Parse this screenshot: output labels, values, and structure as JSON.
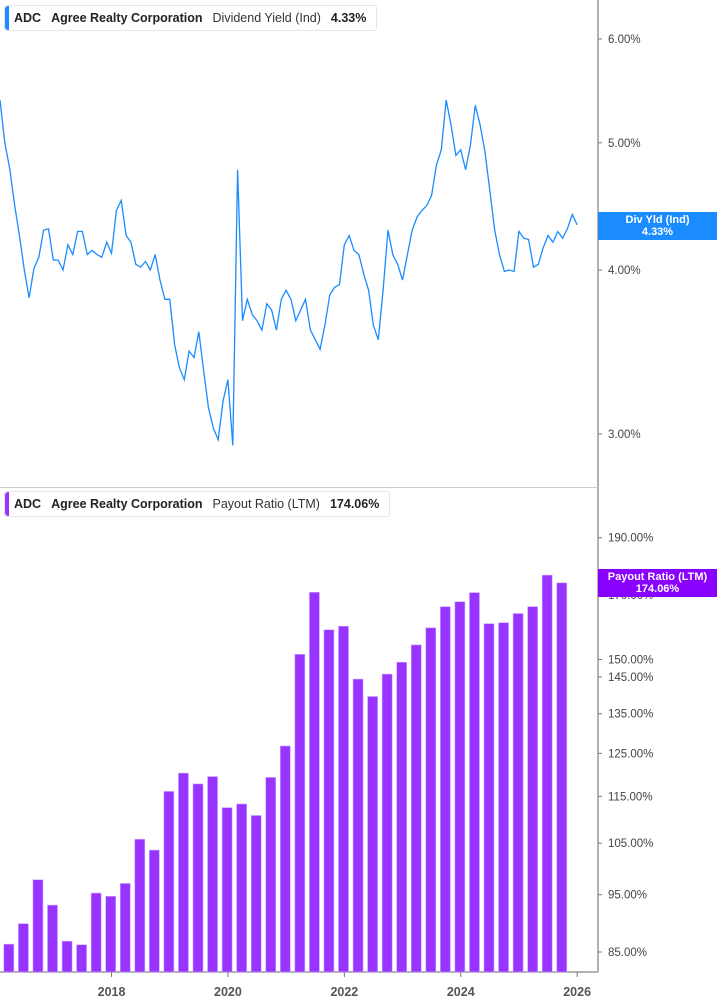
{
  "colors": {
    "yield": "#1a8cff",
    "payout": "#9933ff",
    "payout_badge": "#8a00ff",
    "axis": "#999999"
  },
  "top_legend": {
    "ticker": "ADC",
    "company": "Agree Realty Corporation",
    "metric": "Dividend Yield (Ind)",
    "value": "4.33%"
  },
  "bottom_legend": {
    "ticker": "ADC",
    "company": "Agree Realty Corporation",
    "metric": "Payout Ratio (LTM)",
    "value": "174.06%"
  },
  "top_badge": {
    "label": "Div Yld (Ind)",
    "value": "4.33%"
  },
  "bottom_badge": {
    "label": "Payout Ratio (LTM)",
    "value": "174.06%"
  },
  "chart_data": [
    {
      "type": "line",
      "scale": "log",
      "ylim": [
        2.73,
        6.42
      ],
      "grid": false,
      "yticks": [
        {
          "v": 6,
          "label": "6.00%"
        },
        {
          "v": 5,
          "label": "5.00%"
        },
        {
          "v": 4,
          "label": "4.00%"
        },
        {
          "v": 3,
          "label": "3.00%"
        }
      ],
      "start": "2016-02",
      "frequency": "monthly",
      "values": [
        5.39,
        5.0,
        4.78,
        4.49,
        4.25,
        4.0,
        3.81,
        4.01,
        4.09,
        4.29,
        4.3,
        4.07,
        4.07,
        4.0,
        4.18,
        4.11,
        4.28,
        4.28,
        4.11,
        4.14,
        4.11,
        4.09,
        4.2,
        4.12,
        4.44,
        4.52,
        4.25,
        4.2,
        4.04,
        4.02,
        4.06,
        4.0,
        4.11,
        3.93,
        3.8,
        3.8,
        3.51,
        3.37,
        3.3,
        3.47,
        3.43,
        3.59,
        3.35,
        3.14,
        3.03,
        2.97,
        3.18,
        3.3,
        2.94,
        4.77,
        3.66,
        3.8,
        3.7,
        3.66,
        3.6,
        3.77,
        3.73,
        3.6,
        3.8,
        3.86,
        3.8,
        3.66,
        3.73,
        3.8,
        3.6,
        3.54,
        3.48,
        3.63,
        3.83,
        3.88,
        3.9,
        4.18,
        4.25,
        4.14,
        4.11,
        3.97,
        3.86,
        3.63,
        3.54,
        3.86,
        4.29,
        4.11,
        4.04,
        3.93,
        4.11,
        4.29,
        4.39,
        4.44,
        4.48,
        4.56,
        4.81,
        4.94,
        5.39,
        5.16,
        4.89,
        4.94,
        4.77,
        4.98,
        5.34,
        5.16,
        4.92,
        4.6,
        4.29,
        4.11,
        3.99,
        4.0,
        3.99,
        4.28,
        4.23,
        4.22,
        4.02,
        4.04,
        4.16,
        4.25,
        4.2,
        4.28,
        4.23,
        4.3,
        4.41,
        4.33
      ]
    },
    {
      "type": "bar",
      "scale": "log",
      "ylim": [
        81.8,
        209
      ],
      "grid": false,
      "yticks": [
        {
          "v": 190,
          "label": "190.00%"
        },
        {
          "v": 170,
          "label": "170.00%"
        },
        {
          "v": 150,
          "label": "150.00%"
        },
        {
          "v": 145,
          "label": "145.00%"
        },
        {
          "v": 135,
          "label": "135.00%"
        },
        {
          "v": 125,
          "label": "125.00%"
        },
        {
          "v": 115,
          "label": "115.00%"
        },
        {
          "v": 105,
          "label": "105.00%"
        },
        {
          "v": 95,
          "label": "95.00%"
        },
        {
          "v": 85,
          "label": "85.00%"
        }
      ],
      "xticks": [
        "2018",
        "2020",
        "2022",
        "2024",
        "2026"
      ],
      "start": "2016-03",
      "frequency": "quarterly",
      "values": [
        86.3,
        89.8,
        97.8,
        93.1,
        86.8,
        86.2,
        95.3,
        94.7,
        97.1,
        105.8,
        103.6,
        116.1,
        120.3,
        117.8,
        119.5,
        112.5,
        113.3,
        110.8,
        119.3,
        126.8,
        151.5,
        170.9,
        158.9,
        160.0,
        144.4,
        139.6,
        145.8,
        149.2,
        154.3,
        159.5,
        166.2,
        167.8,
        170.8,
        160.8,
        161.1,
        164.0,
        166.2,
        176.7,
        174.06
      ]
    }
  ]
}
